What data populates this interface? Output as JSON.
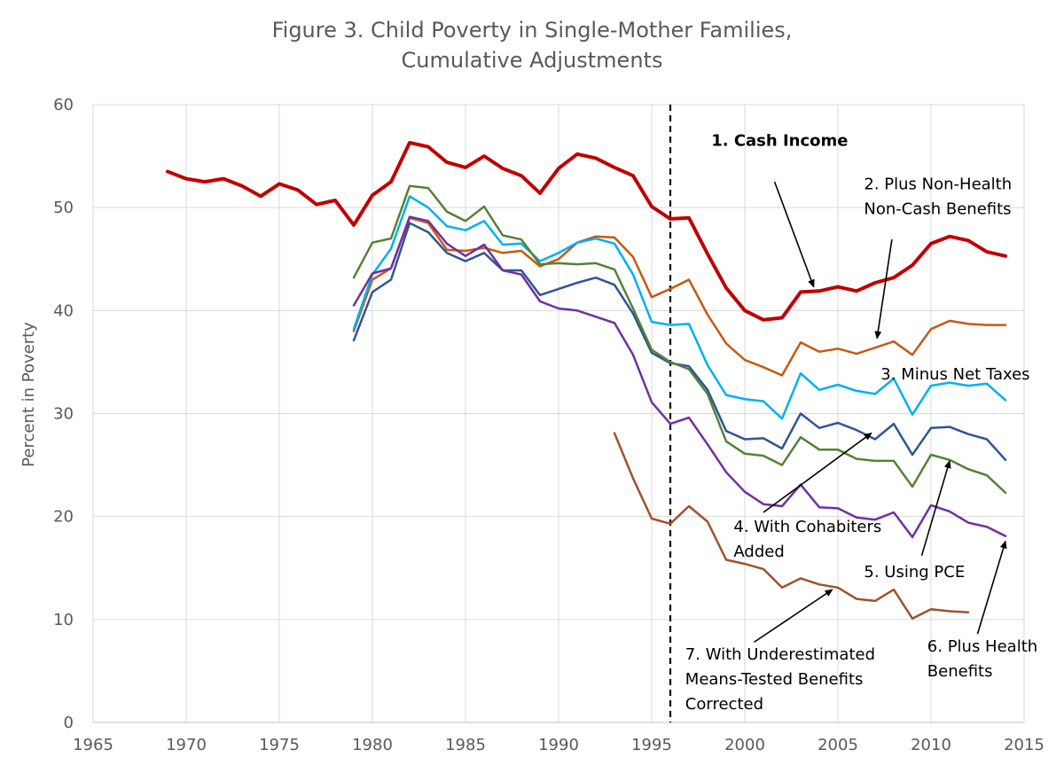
{
  "chart_data": {
    "type": "line",
    "title": [
      "Figure 3. Child Poverty in Single-Mother Families,",
      "Cumulative Adjustments"
    ],
    "xlabel": "",
    "ylabel": "Percent in Poverty",
    "xlim": [
      1965,
      2015
    ],
    "ylim": [
      0,
      60
    ],
    "xticks": [
      1965,
      1970,
      1975,
      1980,
      1985,
      1990,
      1995,
      2000,
      2005,
      2010,
      2015
    ],
    "yticks": [
      0,
      10,
      20,
      30,
      40,
      50,
      60
    ],
    "grid": true,
    "reference_line": {
      "x": 1996,
      "style": "dashed",
      "color": "#000000"
    },
    "series": [
      {
        "name": "1. Cash Income",
        "color": "#c00000",
        "width": 4,
        "x": [
          1969,
          1970,
          1971,
          1972,
          1973,
          1974,
          1975,
          1976,
          1977,
          1978,
          1979,
          1980,
          1981,
          1982,
          1983,
          1984,
          1985,
          1986,
          1987,
          1988,
          1989,
          1990,
          1991,
          1992,
          1993,
          1994,
          1995,
          1996,
          1997,
          1998,
          1999,
          2000,
          2001,
          2002,
          2003,
          2004,
          2005,
          2006,
          2007,
          2008,
          2009,
          2010,
          2011,
          2012,
          2013,
          2014
        ],
        "values": [
          53.5,
          52.8,
          52.5,
          52.8,
          52.1,
          51.1,
          52.3,
          51.7,
          50.3,
          50.7,
          48.3,
          51.2,
          52.5,
          56.3,
          55.9,
          54.4,
          53.9,
          55.0,
          53.8,
          53.1,
          51.4,
          53.8,
          55.2,
          54.8,
          53.9,
          53.1,
          50.1,
          48.9,
          49.0,
          45.5,
          42.2,
          40.0,
          39.1,
          39.3,
          41.8,
          41.9,
          42.3,
          41.9,
          42.7,
          43.2,
          44.4,
          46.5,
          47.2,
          46.8,
          45.7,
          45.3
        ]
      },
      {
        "name": "2. Plus Non-Health Non-Cash Benefits",
        "color": "#c55a11",
        "width": 2.5,
        "x": [
          1979,
          1980,
          1981,
          1982,
          1983,
          1984,
          1985,
          1986,
          1987,
          1988,
          1989,
          1990,
          1991,
          1992,
          1993,
          1994,
          1995,
          1996,
          1997,
          1998,
          1999,
          2000,
          2001,
          2002,
          2003,
          2004,
          2005,
          2006,
          2007,
          2008,
          2009,
          2010,
          2011,
          2012,
          2013,
          2014
        ],
        "values": [
          38.0,
          43.0,
          44.1,
          49.0,
          48.5,
          45.9,
          45.8,
          46.1,
          45.6,
          45.8,
          44.3,
          45.0,
          46.6,
          47.2,
          47.1,
          45.2,
          41.3,
          42.1,
          43.0,
          39.6,
          36.8,
          35.2,
          34.5,
          33.7,
          36.9,
          36.0,
          36.3,
          35.8,
          36.4,
          37.0,
          35.7,
          38.2,
          39.0,
          38.7,
          38.6,
          38.6
        ]
      },
      {
        "name": "3. Minus Net Taxes",
        "color": "#00b0f0",
        "width": 2.5,
        "x": [
          1979,
          1980,
          1981,
          1982,
          1983,
          1984,
          1985,
          1986,
          1987,
          1988,
          1989,
          1990,
          1991,
          1992,
          1993,
          1994,
          1995,
          1996,
          1997,
          1998,
          1999,
          2000,
          2001,
          2002,
          2003,
          2004,
          2005,
          2006,
          2007,
          2008,
          2009,
          2010,
          2011,
          2012,
          2013,
          2014
        ],
        "values": [
          38.2,
          43.5,
          46.0,
          51.1,
          50.0,
          48.2,
          47.8,
          48.7,
          46.4,
          46.5,
          44.8,
          45.6,
          46.6,
          47.0,
          46.5,
          43.5,
          38.9,
          38.6,
          38.7,
          34.7,
          31.8,
          31.4,
          31.2,
          29.5,
          33.9,
          32.3,
          32.8,
          32.2,
          31.9,
          33.4,
          29.9,
          32.7,
          33.0,
          32.7,
          32.9,
          31.3
        ]
      },
      {
        "name": "4. With Cohabiters Added",
        "color": "#2f5597",
        "width": 2.5,
        "x": [
          1979,
          1980,
          1981,
          1982,
          1983,
          1984,
          1985,
          1986,
          1987,
          1988,
          1989,
          1990,
          1991,
          1992,
          1993,
          1994,
          1995,
          1996,
          1997,
          1998,
          1999,
          2000,
          2001,
          2002,
          2003,
          2004,
          2005,
          2006,
          2007,
          2008,
          2009,
          2010,
          2011,
          2012,
          2013,
          2014
        ],
        "values": [
          37.1,
          41.8,
          43.0,
          48.5,
          47.6,
          45.6,
          44.8,
          45.6,
          43.9,
          43.9,
          41.5,
          42.1,
          42.7,
          43.2,
          42.5,
          39.7,
          35.9,
          34.9,
          34.6,
          32.3,
          28.3,
          27.5,
          27.6,
          26.6,
          30.0,
          28.6,
          29.1,
          28.4,
          27.5,
          29.0,
          26.0,
          28.6,
          28.7,
          28.0,
          27.5,
          25.5
        ]
      },
      {
        "name": "5. Using PCE",
        "color": "#548235",
        "width": 2.5,
        "x": [
          1979,
          1980,
          1981,
          1982,
          1983,
          1984,
          1985,
          1986,
          1987,
          1988,
          1989,
          1990,
          1991,
          1992,
          1993,
          1994,
          1995,
          1996,
          1997,
          1998,
          1999,
          2000,
          2001,
          2002,
          2003,
          2004,
          2005,
          2006,
          2007,
          2008,
          2009,
          2010,
          2011,
          2012,
          2013,
          2014
        ],
        "values": [
          43.2,
          46.6,
          47.0,
          52.1,
          51.9,
          49.6,
          48.7,
          50.1,
          47.3,
          46.9,
          44.5,
          44.6,
          44.5,
          44.6,
          44.0,
          40.2,
          36.2,
          35.0,
          34.3,
          31.9,
          27.3,
          26.1,
          25.9,
          25.0,
          27.7,
          26.5,
          26.5,
          25.6,
          25.4,
          25.4,
          22.9,
          26.0,
          25.5,
          24.6,
          24.0,
          22.3
        ]
      },
      {
        "name": "6. Plus Health Benefits",
        "color": "#7030a0",
        "width": 2.5,
        "x": [
          1979,
          1980,
          1981,
          1982,
          1983,
          1984,
          1985,
          1986,
          1987,
          1988,
          1989,
          1990,
          1991,
          1992,
          1993,
          1994,
          1995,
          1996,
          1997,
          1998,
          1999,
          2000,
          2001,
          2002,
          2003,
          2004,
          2005,
          2006,
          2007,
          2008,
          2009,
          2010,
          2011,
          2012,
          2013,
          2014
        ],
        "values": [
          40.5,
          43.6,
          44.1,
          49.1,
          48.7,
          46.5,
          45.3,
          46.4,
          43.9,
          43.5,
          40.9,
          40.2,
          40.0,
          39.4,
          38.8,
          35.7,
          31.1,
          29.0,
          29.6,
          27.0,
          24.3,
          22.4,
          21.2,
          21.0,
          23.1,
          20.9,
          20.8,
          19.9,
          19.7,
          20.4,
          18.0,
          21.1,
          20.5,
          19.4,
          19.0,
          18.1
        ]
      },
      {
        "name": "7. With Underestimated Means-Tested Benefits Corrected",
        "color": "#a0522d",
        "width": 2.5,
        "x": [
          1993,
          1994,
          1995,
          1996,
          1997,
          1998,
          1999,
          2000,
          2001,
          2002,
          2003,
          2004,
          2005,
          2006,
          2007,
          2008,
          2009,
          2010,
          2011,
          2012
        ],
        "values": [
          28.1,
          23.7,
          19.8,
          19.3,
          21.0,
          19.5,
          15.8,
          15.4,
          14.9,
          13.1,
          14.0,
          13.4,
          13.1,
          12.0,
          11.8,
          12.9,
          10.1,
          11.0,
          10.8,
          10.7
        ]
      }
    ],
    "annotations": [
      {
        "lines": [
          "1. Cash Income"
        ],
        "bold": true,
        "text_at": [
          1998.2,
          56.0
        ],
        "arrow_from": [
          2001.6,
          52.5
        ],
        "arrow_to": [
          2003.7,
          42.3
        ]
      },
      {
        "lines": [
          "2. Plus Non-Health",
          "Non-Cash Benefits"
        ],
        "bold": false,
        "text_at": [
          2006.4,
          51.8
        ],
        "arrow_from": [
          2007.9,
          46.9
        ],
        "arrow_to": [
          2007.1,
          37.3
        ]
      },
      {
        "lines": [
          "3. Minus Net Taxes"
        ],
        "bold": false,
        "text_at": [
          2007.3,
          33.3
        ],
        "arrow_from": null,
        "arrow_to": null
      },
      {
        "lines": [
          "4. With Cohabiters",
          "Added"
        ],
        "bold": false,
        "text_at": [
          1999.4,
          18.5
        ],
        "arrow_from": [
          2001.0,
          20.4
        ],
        "arrow_to": [
          2006.8,
          28.1
        ]
      },
      {
        "lines": [
          "5. Using PCE"
        ],
        "bold": false,
        "text_at": [
          2006.4,
          14.1
        ],
        "arrow_from": [
          2009.5,
          16.2
        ],
        "arrow_to": [
          2011.0,
          25.4
        ]
      },
      {
        "lines": [
          "6. Plus Health",
          "Benefits"
        ],
        "bold": false,
        "text_at": [
          2009.8,
          6.9
        ],
        "arrow_from": [
          2012.5,
          8.6
        ],
        "arrow_to": [
          2014.0,
          17.6
        ]
      },
      {
        "lines": [
          "7. With Underestimated",
          "Means-Tested Benefits",
          "Corrected"
        ],
        "bold": false,
        "text_at": [
          1996.8,
          6.1
        ],
        "arrow_from": [
          2000.5,
          7.8
        ],
        "arrow_to": [
          2004.7,
          12.9
        ]
      }
    ]
  }
}
